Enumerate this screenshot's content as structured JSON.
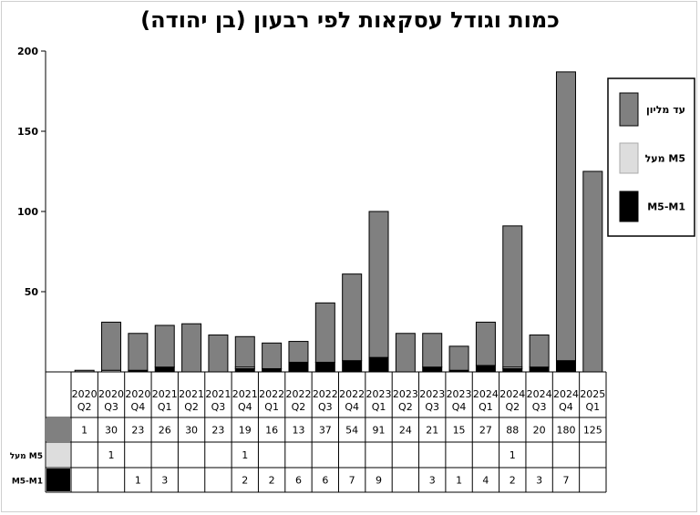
{
  "chart_data": {
    "type": "bar",
    "title": "כמות וגודל עסקאות לפי רבעון (בן יהודה)",
    "categories": [
      [
        "2020",
        "Q2"
      ],
      [
        "2020",
        "Q3"
      ],
      [
        "2020",
        "Q4"
      ],
      [
        "2021",
        "Q1"
      ],
      [
        "2021",
        "Q2"
      ],
      [
        "2021",
        "Q3"
      ],
      [
        "2021",
        "Q4"
      ],
      [
        "2022",
        "Q1"
      ],
      [
        "2022",
        "Q2"
      ],
      [
        "2022",
        "Q3"
      ],
      [
        "2022",
        "Q4"
      ],
      [
        "2023",
        "Q1"
      ],
      [
        "2023",
        "Q2"
      ],
      [
        "2023",
        "Q3"
      ],
      [
        "2023",
        "Q4"
      ],
      [
        "2024",
        "Q1"
      ],
      [
        "2024",
        "Q2"
      ],
      [
        "2024",
        "Q3"
      ],
      [
        "2024",
        "Q4"
      ],
      [
        "2025",
        "Q1"
      ]
    ],
    "stacked": true,
    "series": [
      {
        "name": "M5-M1",
        "color": "#000000",
        "values": [
          null,
          null,
          1,
          3,
          null,
          null,
          2,
          2,
          6,
          6,
          7,
          9,
          null,
          3,
          1,
          4,
          2,
          3,
          7,
          null
        ]
      },
      {
        "name": "מעל M5",
        "color": "#dddddd",
        "values": [
          null,
          1,
          null,
          null,
          null,
          null,
          1,
          null,
          null,
          null,
          null,
          null,
          null,
          null,
          null,
          null,
          1,
          null,
          null,
          null
        ]
      },
      {
        "name": "עד מליון",
        "color": "#808080",
        "values": [
          1,
          30,
          23,
          26,
          30,
          23,
          19,
          16,
          13,
          37,
          54,
          91,
          24,
          21,
          15,
          27,
          88,
          20,
          180,
          125
        ]
      }
    ],
    "yticks": [
      50,
      100,
      150,
      200
    ],
    "ylim": [
      0,
      200
    ],
    "table_row_order": [
      "עד מליון",
      "מעל M5",
      "M5-M1"
    ],
    "legend_position": "right",
    "grid": false
  }
}
